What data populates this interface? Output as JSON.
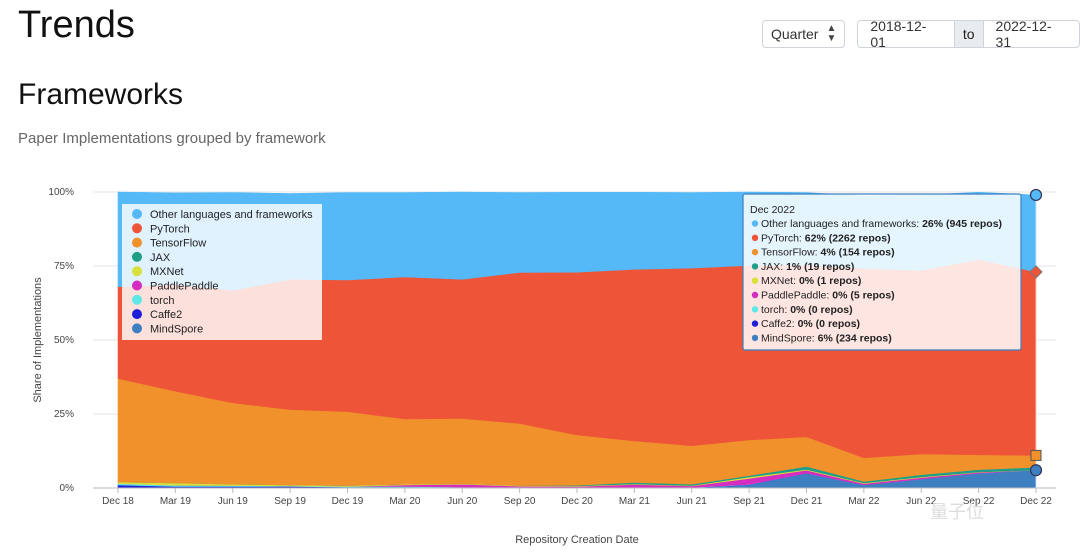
{
  "header": {
    "title": "Trends",
    "period_select": "Quarter",
    "start_date": "2018-12-01",
    "to_label": "to",
    "end_date": "2022-12-31"
  },
  "section": {
    "title": "Frameworks",
    "subtitle": "Paper Implementations grouped by framework"
  },
  "chart_data": {
    "type": "area",
    "stacked": true,
    "title": "",
    "xlabel": "Repository Creation Date",
    "ylabel": "Share of Implementations",
    "ylim": [
      0,
      100
    ],
    "yticks": [
      "0%",
      "25%",
      "50%",
      "75%",
      "100%"
    ],
    "xticks": [
      "Dec 18",
      "Mar 19",
      "Jun 19",
      "Sep 19",
      "Dec 19",
      "Mar 20",
      "Jun 20",
      "Sep 20",
      "Dec 20",
      "Mar 21",
      "Jun 21",
      "Sep 21",
      "Dec 21",
      "Mar 22",
      "Jun 22",
      "Sep 22",
      "Dec 22"
    ],
    "legend_position": "top-left",
    "series": [
      {
        "name": "MindSpore",
        "color": "#3d7fc1",
        "values": [
          0,
          0,
          0,
          0,
          0,
          0,
          0,
          0,
          0,
          0,
          0,
          1,
          5,
          1,
          3,
          5,
          6
        ]
      },
      {
        "name": "Caffe2",
        "color": "#1f1fd9",
        "values": [
          1,
          0.5,
          0.5,
          0.5,
          0.3,
          0.3,
          0.2,
          0.2,
          0.1,
          0.1,
          0.1,
          0.1,
          0,
          0,
          0,
          0,
          0
        ]
      },
      {
        "name": "torch",
        "color": "#5ee8e8",
        "values": [
          0.5,
          0.4,
          0.3,
          0.2,
          0.2,
          0.2,
          0.1,
          0.1,
          0.1,
          0.1,
          0.1,
          0.1,
          0,
          0,
          0,
          0,
          0
        ]
      },
      {
        "name": "PaddlePaddle",
        "color": "#d62cc0",
        "values": [
          0,
          0,
          0,
          0,
          0,
          0.5,
          1,
          0.3,
          0.3,
          1,
          0.5,
          2,
          1,
          0.5,
          0.5,
          0.3,
          0
        ]
      },
      {
        "name": "MXNet",
        "color": "#d8e03a",
        "values": [
          0.5,
          0.8,
          0.5,
          0.3,
          0.3,
          0.3,
          0.2,
          0.2,
          0.2,
          0.2,
          0.1,
          0.5,
          0.3,
          0.2,
          0.2,
          0.1,
          0
        ]
      },
      {
        "name": "JAX",
        "color": "#1f9e8a",
        "values": [
          0,
          0,
          0,
          0,
          0,
          0,
          0,
          0,
          0.2,
          0.5,
          0.5,
          0.5,
          1,
          0.5,
          0.8,
          0.8,
          1
        ]
      },
      {
        "name": "TensorFlow",
        "color": "#f0912c",
        "values": [
          35,
          31,
          27.5,
          25.5,
          25,
          22,
          22,
          21,
          17,
          14,
          13,
          12,
          10,
          8,
          7,
          5,
          4
        ]
      },
      {
        "name": "PyTorch",
        "color": "#ee5538",
        "values": [
          31,
          36,
          38,
          44,
          44.5,
          48,
          47,
          51,
          55,
          58,
          60,
          59,
          58,
          64,
          62,
          66,
          62
        ]
      },
      {
        "name": "Other languages and frameworks",
        "color": "#55b8f7",
        "values": [
          32,
          31,
          33,
          29,
          29.5,
          28.5,
          29.5,
          27,
          27,
          26,
          25.5,
          25,
          24.5,
          24.5,
          25.5,
          22.7,
          26
        ]
      }
    ],
    "legend": [
      "Other languages and frameworks",
      "PyTorch",
      "TensorFlow",
      "JAX",
      "MXNet",
      "PaddlePaddle",
      "torch",
      "Caffe2",
      "MindSpore"
    ],
    "tooltip": {
      "title": "Dec 2022",
      "rows": [
        {
          "label": "Other languages and frameworks: ",
          "value": "26% (945 repos)",
          "color": "#55b8f7"
        },
        {
          "label": "PyTorch: ",
          "value": "62% (2262 repos)",
          "color": "#ee5538"
        },
        {
          "label": "TensorFlow: ",
          "value": "4% (154 repos)",
          "color": "#f0912c"
        },
        {
          "label": "JAX: ",
          "value": "1% (19 repos)",
          "color": "#1f9e8a"
        },
        {
          "label": "MXNet: ",
          "value": "0% (1 repos)",
          "color": "#d8e03a"
        },
        {
          "label": "PaddlePaddle: ",
          "value": "0% (5 repos)",
          "color": "#d62cc0"
        },
        {
          "label": "torch: ",
          "value": "0% (0 repos)",
          "color": "#5ee8e8"
        },
        {
          "label": "Caffe2: ",
          "value": "0% (0 repos)",
          "color": "#1f1fd9"
        },
        {
          "label": "MindSpore: ",
          "value": "6% (234 repos)",
          "color": "#3d7fc1"
        }
      ]
    }
  },
  "watermark": "量子位"
}
